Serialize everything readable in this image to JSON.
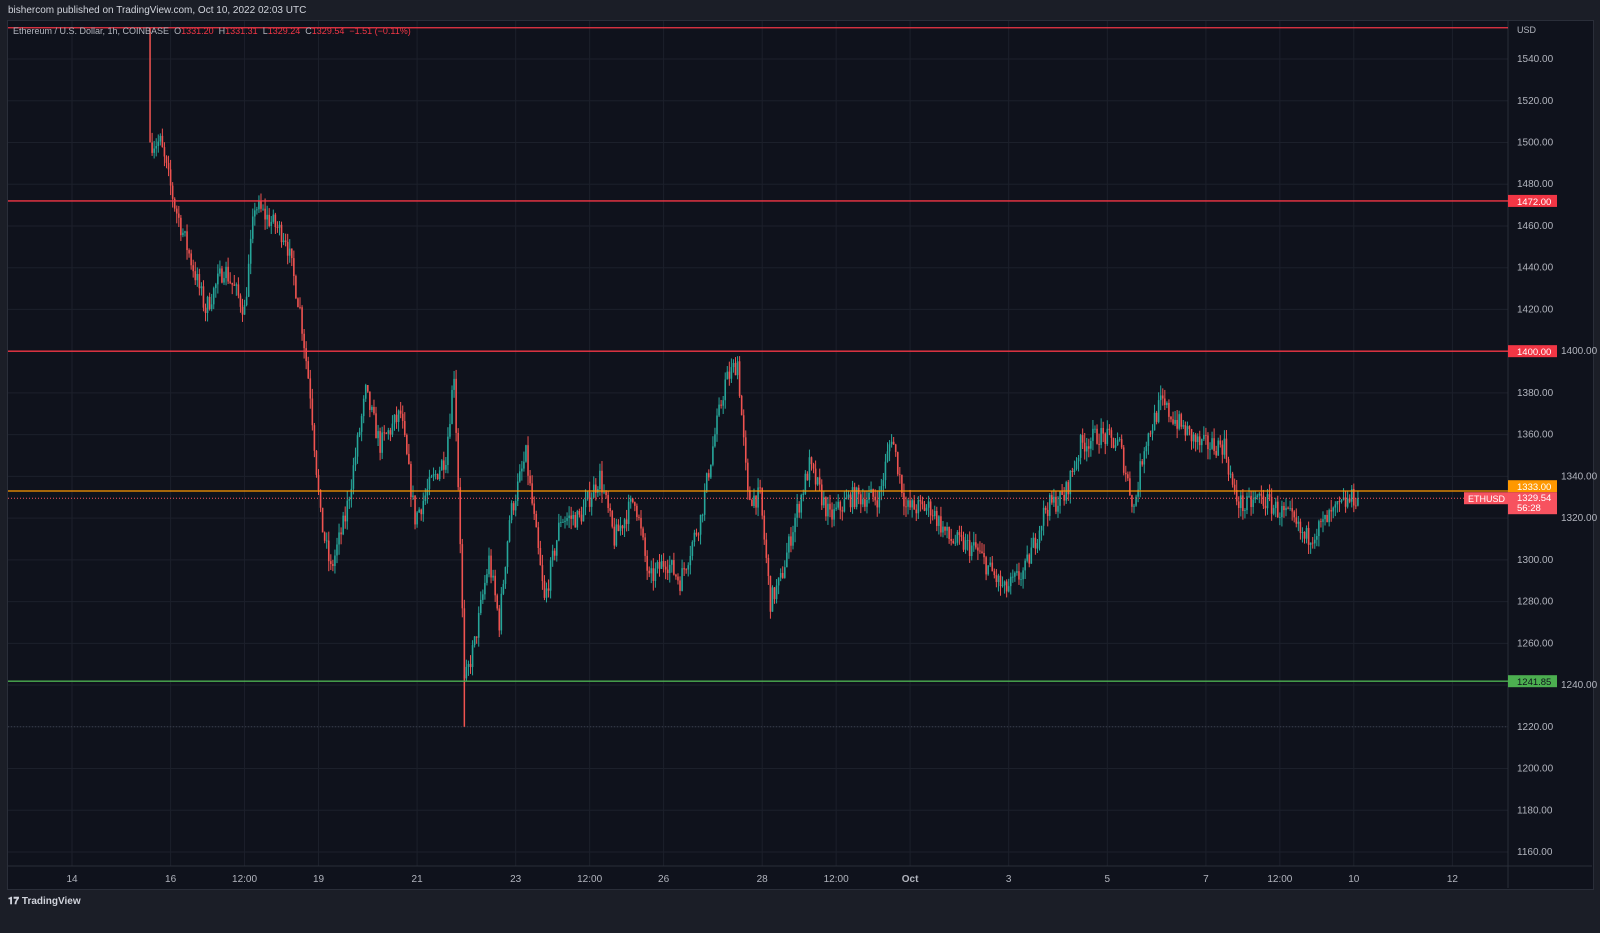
{
  "header": {
    "published": "bishercom published on TradingView.com, Oct 10, 2022 02:03 UTC"
  },
  "legend": {
    "symbol": "Ethereum / U.S. Dollar, 1h, COINBASE",
    "o_label": "O",
    "o": "1331.20",
    "h_label": "H",
    "h": "1331.31",
    "l_label": "L",
    "l": "1329.24",
    "c_label": "C",
    "c": "1329.54",
    "change": "−1.51 (−0.11%)"
  },
  "footer": {
    "brand": "TradingView"
  },
  "chart_data": {
    "type": "candlestick",
    "title": "Ethereum / U.S. Dollar, 1h, COINBASE",
    "currency": "USD",
    "ylim": [
      1150,
      1560
    ],
    "y_ticks": [
      "1540.00",
      "1520.00",
      "1500.00",
      "1480.00",
      "1460.00",
      "1440.00",
      "1420.00",
      "1400.00",
      "1380.00",
      "1360.00",
      "1340.00",
      "1320.00",
      "1300.00",
      "1280.00",
      "1260.00",
      "1240.00",
      "1220.00",
      "1200.00",
      "1180.00",
      "1160.00"
    ],
    "x_ticks": [
      {
        "label": "14",
        "t": "2022-09-14T00:00"
      },
      {
        "label": "16",
        "t": "2022-09-16T00:00"
      },
      {
        "label": "12:00",
        "t": "2022-09-17T12:00"
      },
      {
        "label": "19",
        "t": "2022-09-19T00:00"
      },
      {
        "label": "21",
        "t": "2022-09-21T00:00"
      },
      {
        "label": "23",
        "t": "2022-09-23T00:00"
      },
      {
        "label": "12:00",
        "t": "2022-09-24T12:00"
      },
      {
        "label": "26",
        "t": "2022-09-26T00:00"
      },
      {
        "label": "28",
        "t": "2022-09-28T00:00"
      },
      {
        "label": "12:00",
        "t": "2022-09-29T12:00"
      },
      {
        "label": "Oct",
        "t": "2022-10-01T00:00"
      },
      {
        "label": "3",
        "t": "2022-10-03T00:00"
      },
      {
        "label": "5",
        "t": "2022-10-05T00:00"
      },
      {
        "label": "7",
        "t": "2022-10-07T00:00"
      },
      {
        "label": "12:00",
        "t": "2022-10-08T12:00"
      },
      {
        "label": "10",
        "t": "2022-10-10T00:00"
      },
      {
        "label": "12",
        "t": "2022-10-12T00:00"
      }
    ],
    "price_path": [
      [
        "2022-09-15T14:00",
        1500
      ],
      [
        "2022-09-15T19:00",
        1500
      ],
      [
        "2022-09-16T02:00",
        1470
      ],
      [
        "2022-09-16T17:00",
        1420
      ],
      [
        "2022-09-17T02:00",
        1440
      ],
      [
        "2022-09-17T12:00",
        1420
      ],
      [
        "2022-09-17T17:00",
        1470
      ],
      [
        "2022-09-18T08:00",
        1455
      ],
      [
        "2022-09-18T15:00",
        1420
      ],
      [
        "2022-09-18T20:00",
        1380
      ],
      [
        "2022-09-19T01:00",
        1320
      ],
      [
        "2022-09-19T06:00",
        1295
      ],
      [
        "2022-09-19T13:00",
        1320
      ],
      [
        "2022-09-19T23:00",
        1380
      ],
      [
        "2022-09-20T06:00",
        1355
      ],
      [
        "2022-09-20T16:00",
        1370
      ],
      [
        "2022-09-20T23:00",
        1320
      ],
      [
        "2022-09-21T06:00",
        1335
      ],
      [
        "2022-09-21T14:00",
        1350
      ],
      [
        "2022-09-21T18:00",
        1390
      ],
      [
        "2022-09-21T21:00",
        1310
      ],
      [
        "2022-09-21T23:00",
        1240
      ],
      [
        "2022-09-22T04:00",
        1260
      ],
      [
        "2022-09-22T11:00",
        1300
      ],
      [
        "2022-09-22T16:00",
        1270
      ],
      [
        "2022-09-22T21:00",
        1320
      ],
      [
        "2022-09-23T05:00",
        1350
      ],
      [
        "2022-09-23T14:00",
        1280
      ],
      [
        "2022-09-23T22:00",
        1320
      ],
      [
        "2022-09-24T07:00",
        1320
      ],
      [
        "2022-09-24T17:00",
        1340
      ],
      [
        "2022-09-25T00:00",
        1310
      ],
      [
        "2022-09-25T10:00",
        1330
      ],
      [
        "2022-09-25T17:00",
        1290
      ],
      [
        "2022-09-26T01:00",
        1300
      ],
      [
        "2022-09-26T08:00",
        1290
      ],
      [
        "2022-09-26T18:00",
        1320
      ],
      [
        "2022-09-27T01:00",
        1360
      ],
      [
        "2022-09-27T06:00",
        1385
      ],
      [
        "2022-09-27T12:00",
        1395
      ],
      [
        "2022-09-27T17:00",
        1330
      ],
      [
        "2022-09-27T23:00",
        1330
      ],
      [
        "2022-09-28T04:00",
        1280
      ],
      [
        "2022-09-28T09:00",
        1290
      ],
      [
        "2022-09-28T16:00",
        1320
      ],
      [
        "2022-09-28T23:00",
        1345
      ],
      [
        "2022-09-29T09:00",
        1320
      ],
      [
        "2022-09-29T19:00",
        1330
      ],
      [
        "2022-09-30T09:00",
        1330
      ],
      [
        "2022-09-30T15:00",
        1360
      ],
      [
        "2022-09-30T22:00",
        1325
      ],
      [
        "2022-10-01T10:00",
        1325
      ],
      [
        "2022-10-01T19:00",
        1310
      ],
      [
        "2022-10-02T08:00",
        1305
      ],
      [
        "2022-10-02T15:00",
        1295
      ],
      [
        "2022-10-02T22:00",
        1285
      ],
      [
        "2022-10-03T08:00",
        1295
      ],
      [
        "2022-10-03T18:00",
        1325
      ],
      [
        "2022-10-04T03:00",
        1330
      ],
      [
        "2022-10-04T11:00",
        1355
      ],
      [
        "2022-10-04T20:00",
        1360
      ],
      [
        "2022-10-05T06:00",
        1355
      ],
      [
        "2022-10-05T13:00",
        1325
      ],
      [
        "2022-10-05T18:00",
        1355
      ],
      [
        "2022-10-06T02:00",
        1375
      ],
      [
        "2022-10-06T11:00",
        1365
      ],
      [
        "2022-10-06T21:00",
        1355
      ],
      [
        "2022-10-07T09:00",
        1355
      ],
      [
        "2022-10-07T14:00",
        1330
      ],
      [
        "2022-10-07T19:00",
        1325
      ],
      [
        "2022-10-08T02:00",
        1330
      ],
      [
        "2022-10-08T17:00",
        1320
      ],
      [
        "2022-10-09T00:00",
        1310
      ],
      [
        "2022-10-09T07:00",
        1315
      ],
      [
        "2022-10-09T17:00",
        1325
      ],
      [
        "2022-10-10T00:00",
        1330
      ],
      [
        "2022-10-10T02:00",
        1329.54
      ]
    ],
    "extremes": {
      "high": {
        "t": "2022-09-15T14:00",
        "price": 1555
      },
      "low": {
        "t": "2022-09-21T23:00",
        "price": 1220
      }
    },
    "levels": [
      {
        "price": 1555,
        "color": "#f23645",
        "label": ""
      },
      {
        "price": 1472,
        "color": "#f23645",
        "label": "1472.00"
      },
      {
        "price": 1400,
        "color": "#f23645",
        "label": "1400.00"
      },
      {
        "price": 1333,
        "color": "#ff9800",
        "label": "1333.00"
      },
      {
        "price": 1241.85,
        "color": "#4caf50",
        "label": "1241.85"
      }
    ],
    "last_price": {
      "symbol": "ETHUSD",
      "price": "1329.54",
      "countdown": "56:28",
      "color": "#f7525f"
    },
    "colors": {
      "up": "#26a69a",
      "down": "#ef5350"
    }
  }
}
